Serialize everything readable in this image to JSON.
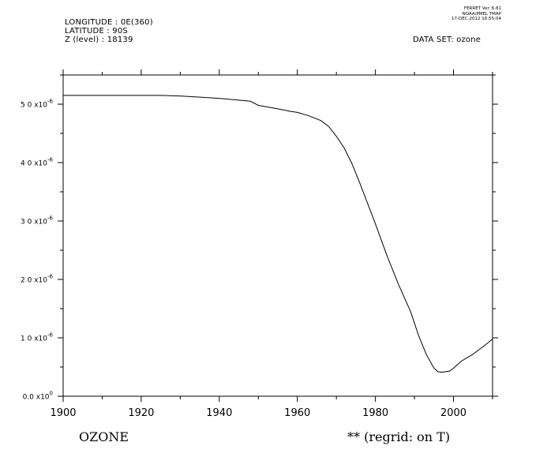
{
  "header": {
    "longitude": "LONGITUDE : 0E(360)",
    "latitude": "LATITUDE : 90S",
    "z_level": "Z (level) : 18139",
    "dataset": "DATA SET: ozone",
    "ferret_version": "FERRET Ver. 6.81",
    "ferret_org": "NOAA/PMEL TMAP",
    "ferret_date": "17-DEC-2012 16:55:04"
  },
  "chart_data": {
    "type": "line",
    "title": "",
    "xlabel": "OZONE",
    "xlabel_right": "** (regrid: on T)",
    "ylabel": "",
    "xlim": [
      1900,
      2010
    ],
    "ylim": [
      0,
      5.5e-06
    ],
    "x_ticks": [
      1900,
      1920,
      1940,
      1960,
      1980,
      2000
    ],
    "y_ticks": [
      {
        "value": 0,
        "mantissa": "0.0",
        "exp": "0"
      },
      {
        "value": 1e-06,
        "mantissa": "1 0",
        "exp": "-6"
      },
      {
        "value": 2e-06,
        "mantissa": "2 0",
        "exp": "-6"
      },
      {
        "value": 3e-06,
        "mantissa": "3 0",
        "exp": "-6"
      },
      {
        "value": 4e-06,
        "mantissa": "4 0",
        "exp": "-6"
      },
      {
        "value": 5e-06,
        "mantissa": "5 0",
        "exp": "-6"
      }
    ],
    "grid": false,
    "line_color": "#000000",
    "series": [
      {
        "x": [
          1900,
          1910,
          1920,
          1925,
          1930,
          1935,
          1940,
          1945,
          1948,
          1950,
          1955,
          1958,
          1960,
          1963,
          1966,
          1968,
          1970,
          1972,
          1974,
          1976,
          1978,
          1980,
          1983,
          1986,
          1989,
          1991,
          1993,
          1995,
          1996,
          1997,
          1998,
          1999,
          2000,
          2002,
          2005,
          2008,
          2010
        ],
        "y": [
          5.15e-06,
          5.15e-06,
          5.15e-06,
          5.15e-06,
          5.14e-06,
          5.12e-06,
          5.1e-06,
          5.07e-06,
          5.05e-06,
          4.98e-06,
          4.92e-06,
          4.88e-06,
          4.86e-06,
          4.8e-06,
          4.72e-06,
          4.62e-06,
          4.45e-06,
          4.25e-06,
          3.98e-06,
          3.65e-06,
          3.3e-06,
          2.95e-06,
          2.4e-06,
          1.9e-06,
          1.45e-06,
          1.05e-06,
          7.2e-07,
          4.8e-07,
          4.2e-07,
          4.1e-07,
          4.2e-07,
          4.3e-07,
          4.8e-07,
          6e-07,
          7.2e-07,
          8.7e-07,
          9.8e-07
        ]
      }
    ]
  }
}
